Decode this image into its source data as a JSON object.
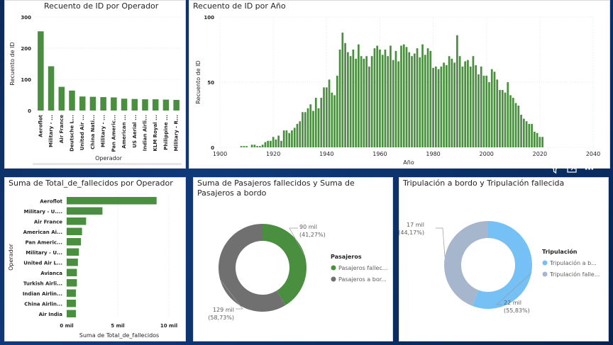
{
  "colors": {
    "green": "#4a8f3f",
    "gray": "#707070",
    "lightblue": "#75c0f5",
    "grayblue": "#a6b6cc"
  },
  "panels": {
    "operator_count_title": "Recuento de ID por Operador",
    "year_count_title": "Recuento de ID por Año",
    "fatalities_operator_title": "Suma de Total_de_fallecidos por Operador",
    "passengers_title": "Suma de Pasajeros fallecidos y Suma de Pasajeros a bordo",
    "crew_title": "Tripulación a bordo y Tripulación fallecida"
  },
  "toolbar": {
    "filter_icon": "filter-icon",
    "focus_icon": "focus-mode-icon",
    "more_icon": "more-options-icon",
    "more_label": "···"
  },
  "chart_data": [
    {
      "type": "bar",
      "title": "Recuento de ID por Operador",
      "xlabel": "Operador",
      "ylabel": "Recuento de ID",
      "ylim": [
        0,
        300
      ],
      "yticks": [
        "0",
        "100",
        "200",
        "300"
      ],
      "categories": [
        "Aeroflot",
        "Military - ...",
        "Air France",
        "Deutsche L...",
        "United Air ...",
        "China Nati...",
        "Military - ...",
        "Pan Americ...",
        "American ...",
        "US Aerial ...",
        "Indian Airli...",
        "KLM Royal ...",
        "Philippine ...",
        "Military - R..."
      ],
      "values": [
        254,
        142,
        76,
        64,
        45,
        44,
        43,
        42,
        38,
        37,
        36,
        36,
        35,
        34
      ]
    },
    {
      "type": "bar",
      "title": "Recuento de ID por Año",
      "xlabel": "Año",
      "ylabel": "Recuento de ID",
      "ylim": [
        0,
        100
      ],
      "xlim": [
        1900,
        2040
      ],
      "yticks": [
        "0",
        "50",
        "100"
      ],
      "xticks": [
        "1900",
        "1920",
        "1940",
        "1960",
        "1980",
        "2000",
        "2020",
        "2040"
      ],
      "x": [
        1908,
        1909,
        1910,
        1911,
        1912,
        1913,
        1914,
        1915,
        1916,
        1917,
        1918,
        1919,
        1920,
        1921,
        1922,
        1923,
        1924,
        1925,
        1926,
        1927,
        1928,
        1929,
        1930,
        1931,
        1932,
        1933,
        1934,
        1935,
        1936,
        1937,
        1938,
        1939,
        1940,
        1941,
        1942,
        1943,
        1944,
        1945,
        1946,
        1947,
        1948,
        1949,
        1950,
        1951,
        1952,
        1953,
        1954,
        1955,
        1956,
        1957,
        1958,
        1959,
        1960,
        1961,
        1962,
        1963,
        1964,
        1965,
        1966,
        1967,
        1968,
        1969,
        1970,
        1971,
        1972,
        1973,
        1974,
        1975,
        1976,
        1977,
        1978,
        1979,
        1980,
        1981,
        1982,
        1983,
        1984,
        1985,
        1986,
        1987,
        1988,
        1989,
        1990,
        1991,
        1992,
        1993,
        1994,
        1995,
        1996,
        1997,
        1998,
        1999,
        2000,
        2001,
        2002,
        2003,
        2004,
        2005,
        2006,
        2007,
        2008,
        2009,
        2010,
        2011,
        2012,
        2013,
        2014,
        2015,
        2016,
        2017,
        2018,
        2019,
        2020,
        2021
      ],
      "values": [
        1,
        1,
        1,
        0,
        2,
        2,
        1,
        1,
        2,
        4,
        5,
        5,
        8,
        6,
        9,
        5,
        13,
        13,
        11,
        13,
        15,
        18,
        20,
        27,
        27,
        30,
        33,
        28,
        38,
        30,
        38,
        46,
        46,
        52,
        42,
        40,
        55,
        75,
        88,
        80,
        73,
        70,
        75,
        68,
        79,
        70,
        68,
        70,
        62,
        70,
        76,
        78,
        75,
        71,
        75,
        70,
        78,
        67,
        74,
        66,
        78,
        79,
        77,
        73,
        70,
        72,
        76,
        69,
        79,
        71,
        76,
        74,
        61,
        62,
        60,
        62,
        65,
        63,
        70,
        68,
        65,
        86,
        70,
        62,
        66,
        67,
        62,
        70,
        63,
        56,
        62,
        55,
        55,
        50,
        60,
        58,
        52,
        44,
        44,
        42,
        50,
        40,
        38,
        34,
        32,
        25,
        22,
        20,
        18,
        18,
        12,
        11,
        8,
        8
      ]
    },
    {
      "type": "bar",
      "orientation": "horizontal",
      "title": "Suma de Total_de_fallecidos por Operador",
      "xlabel": "Suma de Total_de_fallecidos",
      "ylabel": "Operador",
      "xlim": [
        0,
        10
      ],
      "xticks": [
        "0 mil",
        "5 mil",
        "10 mil"
      ],
      "categories": [
        "Aeroflot",
        "Military - U....",
        "Air France",
        "American Ai...",
        "Pan Americ...",
        "Military - U...",
        "United Air L...",
        "Avianca",
        "Turkish Airli...",
        "Indian Airlin...",
        "China Airlin...",
        "Air India"
      ],
      "values": [
        8.8,
        3.5,
        1.9,
        1.5,
        1.4,
        1.2,
        1.1,
        1.0,
        1.0,
        0.9,
        0.9,
        0.9
      ]
    },
    {
      "type": "pie",
      "title": "Suma de Pasajeros fallecidos y Suma de Pasajeros a bordo",
      "legend_title": "Pasajeros",
      "slices": [
        {
          "name": "Pasajeros fallecidos",
          "legend_label": "Pasajeros fallec...",
          "value_label": "90 mil",
          "pct_label": "(41,27%)",
          "pct": 41.27
        },
        {
          "name": "Pasajeros a bordo",
          "legend_label": "Pasajeros a bor...",
          "value_label": "129 mil",
          "pct_label": "(58,73%)",
          "pct": 58.73
        }
      ]
    },
    {
      "type": "pie",
      "title": "Tripulación a bordo y Tripulación fallecida",
      "legend_title": "Tripulación",
      "slices": [
        {
          "name": "Tripulación a bordo",
          "legend_label": "Tripulación a b...",
          "value_label": "22 mil",
          "pct_label": "(55,83%)",
          "pct": 55.83
        },
        {
          "name": "Tripulación fallecida",
          "legend_label": "Tripulación falle...",
          "value_label": "17 mil",
          "pct_label": "(44,17%)",
          "pct": 44.17
        }
      ]
    }
  ]
}
